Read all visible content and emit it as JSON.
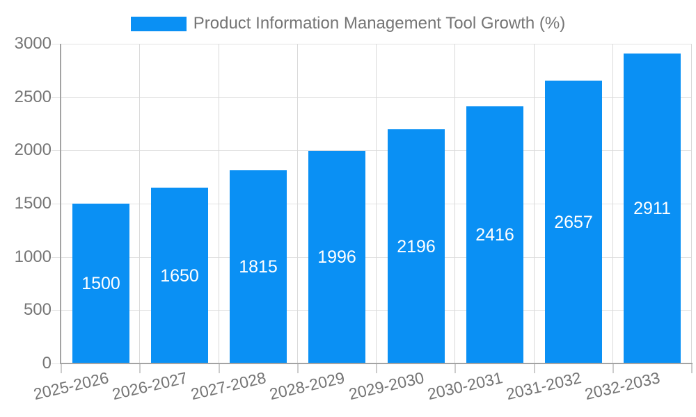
{
  "legend": {
    "position": "top",
    "label": "Product Information Management Tool Growth (%)"
  },
  "colors": {
    "bar": "#0a90f4",
    "gridline_h": "#e3e3e3",
    "gridline_v": "#d9d9d9",
    "axis_line": "#a3a3a3",
    "x_tick": "#cccccc",
    "y_tick": "#e3e3e3",
    "label_text": "#757575",
    "value_text": "#ffffff",
    "background": "#ffffff"
  },
  "chart_data": {
    "type": "bar",
    "title": "Product Information Management Tool Growth (%)",
    "xlabel": "",
    "ylabel": "",
    "categories": [
      "2025-2026",
      "2026-2027",
      "2027-2028",
      "2028-2029",
      "2029-2030",
      "2030-2031",
      "2031-2032",
      "2032-2033"
    ],
    "series": [
      {
        "name": "Product Information Management Tool Growth (%)",
        "color": "#0a90f4",
        "values": [
          1500,
          1650,
          1815,
          1996,
          2196,
          2416,
          2657,
          2911
        ]
      }
    ],
    "value_labels": [
      1500,
      1650,
      1815,
      1996,
      2196,
      2416,
      2657,
      2911
    ],
    "yticks": [
      0,
      500,
      1000,
      1500,
      2000,
      2500,
      3000
    ],
    "ylim": [
      0,
      3000
    ],
    "grid": true,
    "legend_position": "top",
    "value_label_position": "inside-center",
    "x_label_rotation_deg": -13
  }
}
